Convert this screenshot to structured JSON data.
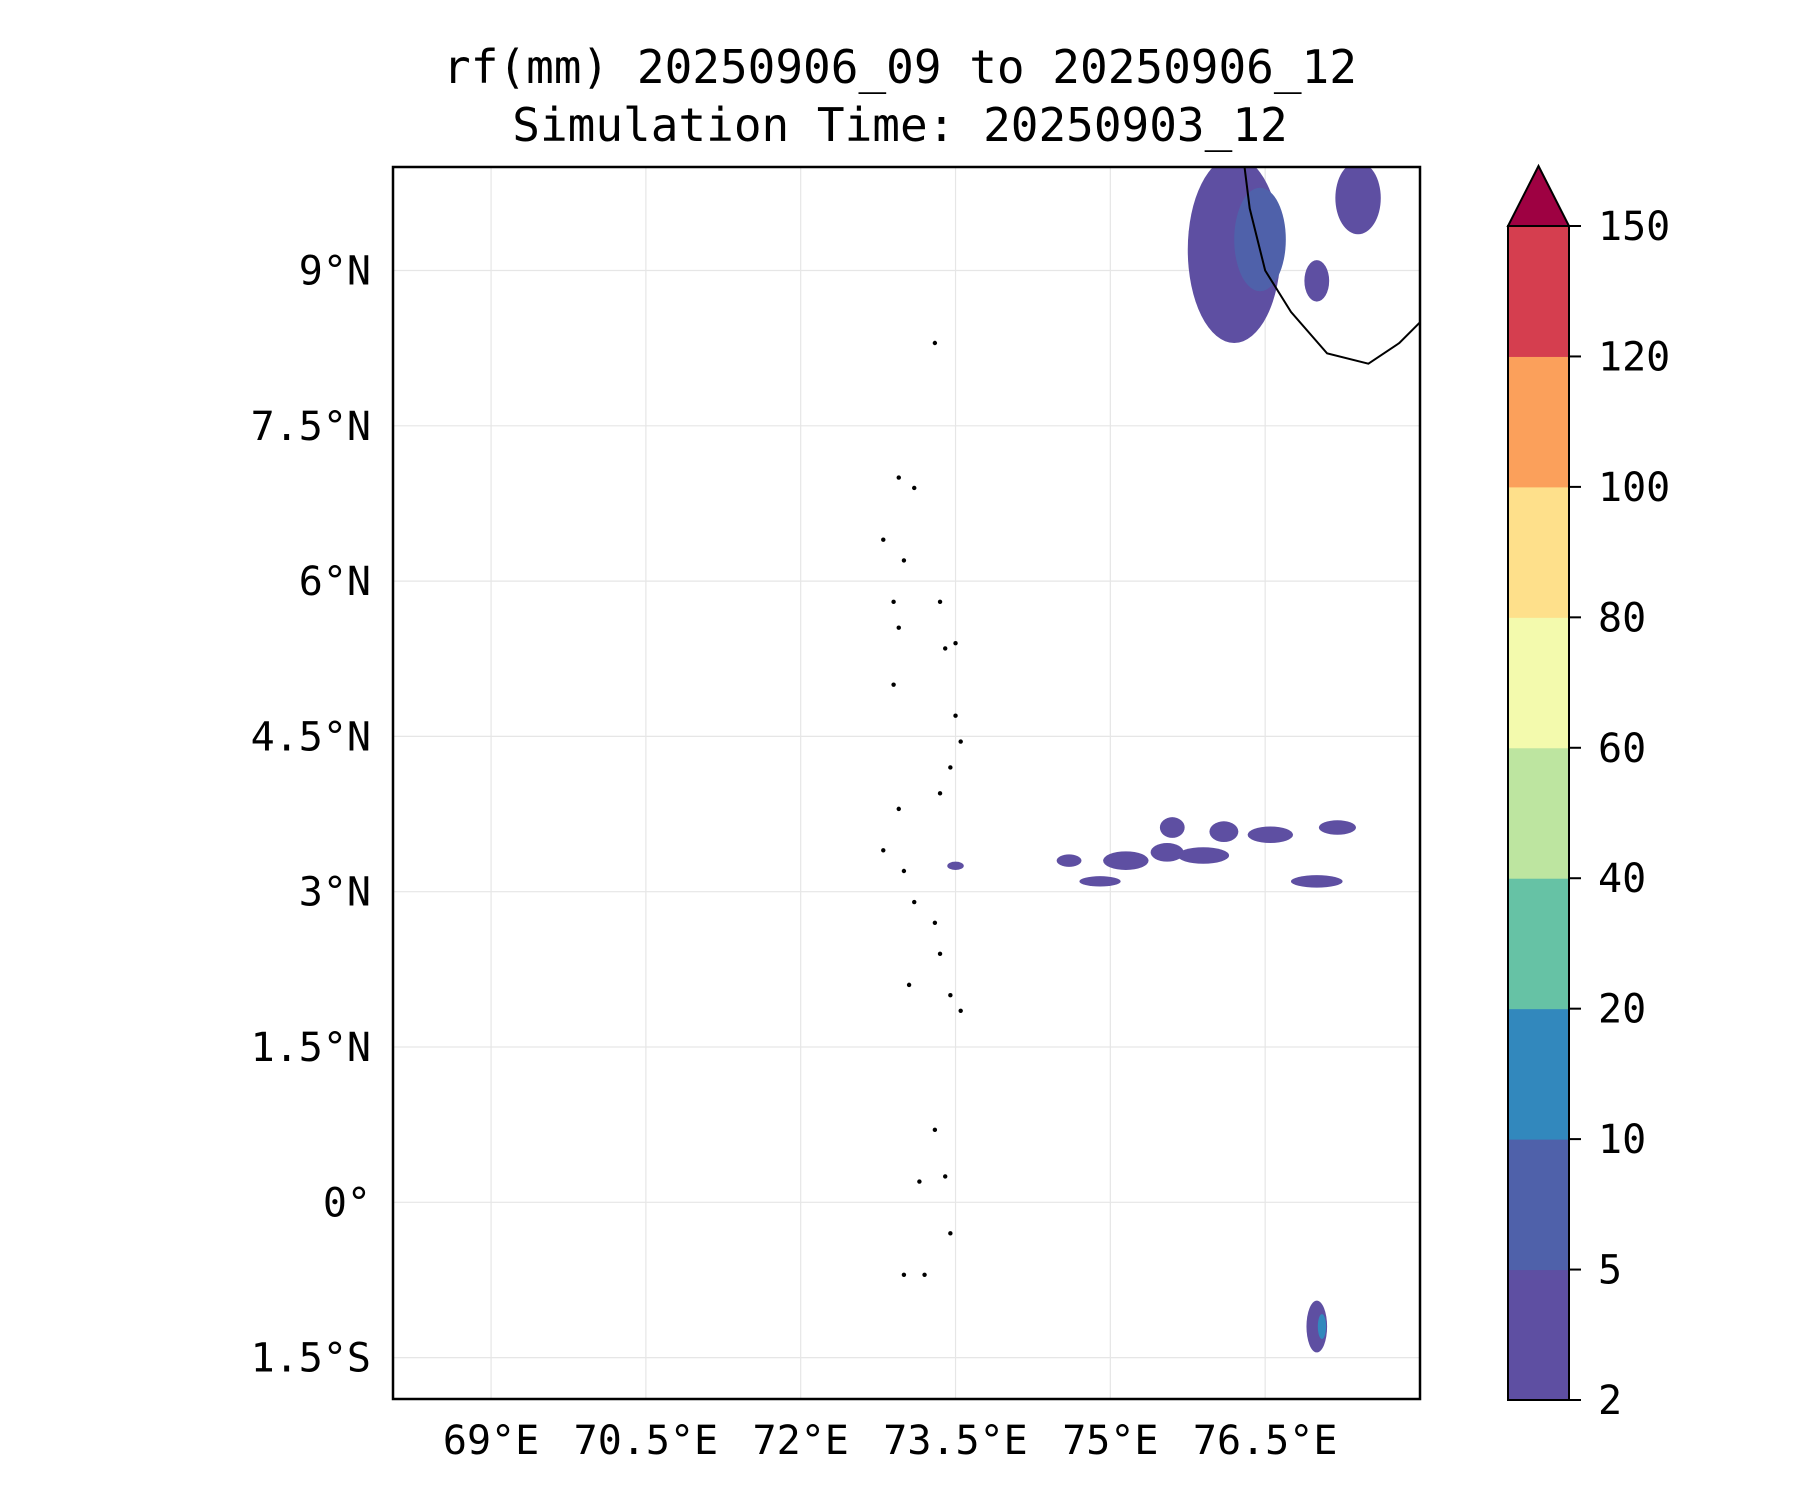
{
  "title": {
    "line1": "rf(mm) 20250906_09 to 20250906_12",
    "line2": "Simulation Time: 20250903_12"
  },
  "map": {
    "lon_range": [
      68.05,
      78.0
    ],
    "lat_range": [
      -1.9,
      10.0
    ],
    "lon_ticks": [
      {
        "value": 69.0,
        "label": "69°E"
      },
      {
        "value": 70.5,
        "label": "70.5°E"
      },
      {
        "value": 72.0,
        "label": "72°E"
      },
      {
        "value": 73.5,
        "label": "73.5°E"
      },
      {
        "value": 75.0,
        "label": "75°E"
      },
      {
        "value": 76.5,
        "label": "76.5°E"
      }
    ],
    "lat_ticks": [
      {
        "value": 9.0,
        "label": "9°N"
      },
      {
        "value": 7.5,
        "label": "7.5°N"
      },
      {
        "value": 6.0,
        "label": "6°N"
      },
      {
        "value": 4.5,
        "label": "4.5°N"
      },
      {
        "value": 3.0,
        "label": "3°N"
      },
      {
        "value": 1.5,
        "label": "1.5°N"
      },
      {
        "value": 0.0,
        "label": "0°"
      },
      {
        "value": -1.5,
        "label": "1.5°S"
      }
    ],
    "gridlines": true,
    "coastline_color": "#000000",
    "grid_color": "#e6e6e6"
  },
  "colorbar": {
    "levels": [
      "2",
      "5",
      "10",
      "20",
      "40",
      "60",
      "80",
      "100",
      "120",
      "150"
    ],
    "colors": [
      "#5e4fa2",
      "#4f61aa",
      "#3288bd",
      "#66c2a5",
      "#bde5a0",
      "#f3faad",
      "#fee08b",
      "#fba05b",
      "#d53e4f"
    ],
    "extend_color": "#9e0142",
    "extend": "max"
  },
  "rain_cells": [
    {
      "lon": 76.2,
      "lat": 9.2,
      "rx": 0.45,
      "ry": 0.9,
      "level": 0
    },
    {
      "lon": 76.45,
      "lat": 9.3,
      "rx": 0.25,
      "ry": 0.5,
      "level": 1
    },
    {
      "lon": 77.4,
      "lat": 9.7,
      "rx": 0.22,
      "ry": 0.35,
      "level": 0
    },
    {
      "lon": 77.0,
      "lat": 8.9,
      "rx": 0.12,
      "ry": 0.2,
      "level": 0
    },
    {
      "lon": 73.5,
      "lat": 3.25,
      "rx": 0.08,
      "ry": 0.04,
      "level": 0
    },
    {
      "lon": 75.15,
      "lat": 3.3,
      "rx": 0.22,
      "ry": 0.09,
      "level": 0
    },
    {
      "lon": 75.55,
      "lat": 3.38,
      "rx": 0.16,
      "ry": 0.09,
      "level": 0
    },
    {
      "lon": 76.1,
      "lat": 3.58,
      "rx": 0.14,
      "ry": 0.1,
      "level": 0
    },
    {
      "lon": 76.55,
      "lat": 3.55,
      "rx": 0.22,
      "ry": 0.08,
      "level": 0
    },
    {
      "lon": 77.2,
      "lat": 3.62,
      "rx": 0.18,
      "ry": 0.07,
      "level": 0
    },
    {
      "lon": 75.9,
      "lat": 3.35,
      "rx": 0.25,
      "ry": 0.08,
      "level": 0
    },
    {
      "lon": 77.0,
      "lat": 3.1,
      "rx": 0.25,
      "ry": 0.06,
      "level": 0
    },
    {
      "lon": 74.6,
      "lat": 3.3,
      "rx": 0.12,
      "ry": 0.06,
      "level": 0
    },
    {
      "lon": 74.9,
      "lat": 3.1,
      "rx": 0.2,
      "ry": 0.05,
      "level": 0
    },
    {
      "lon": 75.6,
      "lat": 3.62,
      "rx": 0.12,
      "ry": 0.1,
      "level": 0
    },
    {
      "lon": 77.0,
      "lat": -1.2,
      "rx": 0.1,
      "ry": 0.25,
      "level": 0
    },
    {
      "lon": 77.05,
      "lat": -1.2,
      "rx": 0.04,
      "ry": 0.12,
      "level": 2
    }
  ],
  "islands": [
    [
      73.3,
      8.3
    ],
    [
      72.95,
      7.0
    ],
    [
      73.1,
      6.9
    ],
    [
      72.8,
      6.4
    ],
    [
      73.0,
      6.2
    ],
    [
      72.9,
      5.8
    ],
    [
      73.35,
      5.8
    ],
    [
      72.95,
      5.55
    ],
    [
      73.4,
      5.35
    ],
    [
      73.5,
      5.4
    ],
    [
      72.9,
      5.0
    ],
    [
      73.5,
      4.7
    ],
    [
      73.55,
      4.45
    ],
    [
      73.45,
      4.2
    ],
    [
      73.35,
      3.95
    ],
    [
      72.95,
      3.8
    ],
    [
      72.8,
      3.4
    ],
    [
      73.0,
      3.2
    ],
    [
      73.1,
      2.9
    ],
    [
      73.3,
      2.7
    ],
    [
      73.35,
      2.4
    ],
    [
      73.05,
      2.1
    ],
    [
      73.45,
      2.0
    ],
    [
      73.55,
      1.85
    ],
    [
      73.3,
      0.7
    ],
    [
      73.15,
      0.2
    ],
    [
      73.4,
      0.25
    ],
    [
      73.0,
      -0.7
    ],
    [
      73.2,
      -0.7
    ],
    [
      73.45,
      -0.3
    ]
  ]
}
